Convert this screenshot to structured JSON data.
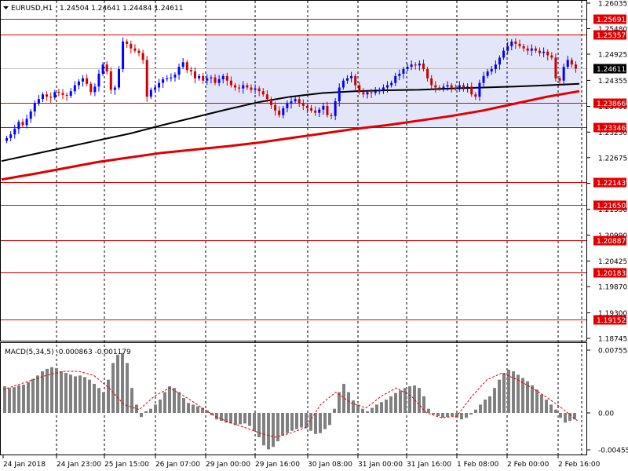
{
  "window": {
    "symbol": "EURUSD,H1",
    "ohlc": "1.24504 1.24641 1.24484 1.24611"
  },
  "chart_data": [
    {
      "type": "candlestick",
      "title": "EURUSD,H1",
      "price_ylim": [
        1.18745,
        1.26035
      ],
      "y_ticks": [
        "1.26035",
        "1.25480",
        "1.24925",
        "1.24355",
        "1.23790",
        "1.23230",
        "1.22675",
        "1.22115",
        "1.21550",
        "1.20990",
        "1.20425",
        "1.19870",
        "1.19300",
        "1.18745"
      ],
      "x_ticks": [
        "24 Jan 2018",
        "24 Jan 23:00",
        "25 Jan 15:00",
        "26 Jan 07:00",
        "29 Jan 00:00",
        "29 Jan 16:00",
        "30 Jan 08:00",
        "31 Jan 00:00",
        "31 Jan 16:00",
        "1 Feb 08:00",
        "2 Feb 00:00",
        "2 Feb 16:00"
      ],
      "current_price": "1.24611",
      "horizontal_levels": [
        "1.25691",
        "1.25357",
        "1.23866",
        "1.23346",
        "1.22143",
        "1.21650",
        "1.20887",
        "1.20183",
        "1.19152"
      ],
      "shaded_zone": {
        "from_time": "29 Jan 00:00",
        "to_time": "2 Feb 16:00",
        "top": 1.25357,
        "bottom": 1.23346
      },
      "candles_close": [
        1.231,
        1.2318,
        1.233,
        1.2345,
        1.2338,
        1.2352,
        1.2368,
        1.2385,
        1.2395,
        1.2405,
        1.24,
        1.2398,
        1.241,
        1.2408,
        1.2404,
        1.2402,
        1.2412,
        1.2425,
        1.2433,
        1.244,
        1.2428,
        1.241,
        1.2422,
        1.245,
        1.247,
        1.2455,
        1.2415,
        1.242,
        1.246,
        1.252,
        1.2515,
        1.2505,
        1.25,
        1.2495,
        1.248,
        1.24,
        1.2415,
        1.242,
        1.243,
        1.2438,
        1.244,
        1.2442,
        1.2448,
        1.2465,
        1.2475,
        1.2458,
        1.2455,
        1.244,
        1.2445,
        1.2435,
        1.244,
        1.2442,
        1.243,
        1.2438,
        1.2445,
        1.2435,
        1.2425,
        1.242,
        1.2418,
        1.2425,
        1.242,
        1.2415,
        1.2418,
        1.2412,
        1.2405,
        1.2395,
        1.2382,
        1.237,
        1.236,
        1.2375,
        1.2385,
        1.239,
        1.2395,
        1.2385,
        1.238,
        1.2375,
        1.237,
        1.2365,
        1.2372,
        1.238,
        1.236,
        1.2358,
        1.239,
        1.242,
        1.2435,
        1.244,
        1.2445,
        1.2425,
        1.241,
        1.2405,
        1.241,
        1.2408,
        1.2412,
        1.2415,
        1.242,
        1.2425,
        1.243,
        1.2445,
        1.245,
        1.246,
        1.2465,
        1.247,
        1.2468,
        1.2472,
        1.246,
        1.244,
        1.2425,
        1.242,
        1.2418,
        1.2422,
        1.2425,
        1.242,
        1.2418,
        1.2425,
        1.242,
        1.2422,
        1.2405,
        1.24,
        1.243,
        1.2445,
        1.2455,
        1.246,
        1.247,
        1.2485,
        1.25,
        1.251,
        1.252,
        1.2515,
        1.251,
        1.2505,
        1.25,
        1.2505,
        1.25,
        1.2495,
        1.2498,
        1.249,
        1.2485,
        1.244,
        1.2435,
        1.2465,
        1.248,
        1.247,
        1.2461
      ],
      "sma_black": [
        1.226,
        1.2275,
        1.229,
        1.2305,
        1.232,
        1.2338,
        1.2355,
        1.2372,
        1.2388,
        1.24,
        1.2408,
        1.2412,
        1.2414,
        1.2415,
        1.2418,
        1.242,
        1.2422,
        1.2425,
        1.2428
      ],
      "sma_red": [
        1.222,
        1.2232,
        1.2245,
        1.2258,
        1.2268,
        1.2278,
        1.2285,
        1.2292,
        1.23,
        1.231,
        1.232,
        1.233,
        1.2338,
        1.2348,
        1.2358,
        1.237,
        1.2385,
        1.24,
        1.2412
      ]
    },
    {
      "type": "bar",
      "title": "MACD(5,34,5) -0.000863 -0.001179",
      "y_ticks": [
        "0.007554",
        "0.00",
        "-0.004555"
      ],
      "values": [
        0.0032,
        0.003,
        0.0031,
        0.0033,
        0.0034,
        0.0037,
        0.0041,
        0.0045,
        0.005,
        0.0053,
        0.0055,
        0.0054,
        0.005,
        0.0048,
        0.0046,
        0.0044,
        0.0045,
        0.0043,
        0.004,
        0.0035,
        0.003,
        0.0025,
        0.004,
        0.006,
        0.007,
        0.0072,
        0.006,
        0.003,
        0.001,
        -0.0005,
        0.0002,
        0.0005,
        0.001,
        0.0016,
        0.0025,
        0.0032,
        0.003,
        0.0025,
        0.0018,
        0.0012,
        0.001,
        0.0008,
        0.0006,
        0.0003,
        -0.0003,
        -0.0008,
        -0.001,
        -0.0012,
        -0.0013,
        -0.0015,
        -0.0014,
        -0.0013,
        -0.0016,
        -0.0022,
        -0.003,
        -0.004,
        -0.0045,
        -0.0042,
        -0.0035,
        -0.0028,
        -0.0025,
        -0.0022,
        -0.002,
        -0.0018,
        -0.0019,
        -0.0022,
        -0.0026,
        -0.0025,
        -0.002,
        -0.0015,
        0.0005,
        0.0025,
        0.0035,
        0.0025,
        0.0015,
        0.001,
        0.0005,
        0.0002,
        0.0006,
        0.001,
        0.0013,
        0.0016,
        0.002,
        0.0024,
        0.0027,
        0.003,
        0.0032,
        0.0033,
        0.003,
        0.002,
        0.0005,
        -0.0002,
        -0.0004,
        -0.0006,
        -0.0005,
        -0.0004,
        -0.0006,
        -0.0008,
        -0.0006,
        -0.0002,
        0.0004,
        0.001,
        0.0016,
        0.002,
        0.003,
        0.004,
        0.0048,
        0.0052,
        0.005,
        0.0046,
        0.0042,
        0.0038,
        0.0033,
        0.0028,
        0.0022,
        0.0016,
        0.001,
        0.0004,
        -0.0006,
        -0.0012,
        -0.001,
        -0.0008
      ],
      "signal": [
        0.0028,
        0.0034,
        0.004,
        0.0046,
        0.005,
        0.005,
        0.0045,
        0.003,
        0.001,
        0.0004,
        0.002,
        0.003,
        0.002,
        0.0008,
        -0.0004,
        -0.0012,
        -0.0018,
        -0.0025,
        -0.003,
        -0.0025,
        -0.0018,
        0.001,
        0.0025,
        0.0012,
        0.0006,
        0.002,
        0.003,
        0.002,
        0.0,
        -0.0006,
        -0.0004,
        0.002,
        0.004,
        0.0048,
        0.004,
        0.003,
        0.0018,
        0.0005,
        -0.001
      ]
    }
  ]
}
